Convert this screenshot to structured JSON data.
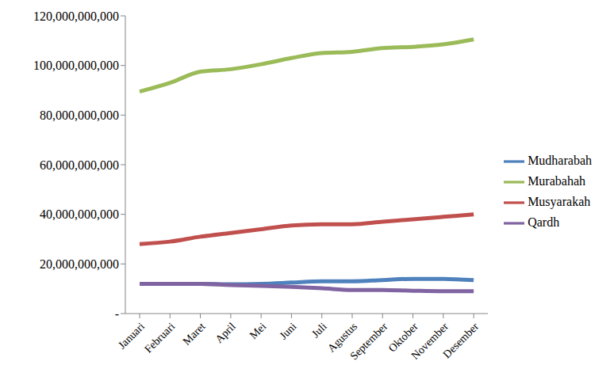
{
  "chart_data": {
    "type": "line",
    "categories": [
      "Januari",
      "Februari",
      "Maret",
      "April",
      "Mei",
      "Juni",
      "Juli",
      "Agustus",
      "September",
      "Oktober",
      "November",
      "Desember"
    ],
    "series": [
      {
        "name": "Mudharabah",
        "color": "#4f81bd",
        "values": [
          12000000000,
          12000000000,
          12000000000,
          11800000000,
          12000000000,
          12500000000,
          13000000000,
          13000000000,
          13500000000,
          14000000000,
          14000000000,
          13500000000
        ]
      },
      {
        "name": "Musyarakah",
        "color": "#c0504d",
        "values": [
          28000000000,
          29000000000,
          31000000000,
          32500000000,
          34000000000,
          35500000000,
          36000000000,
          36000000000,
          37000000000,
          38000000000,
          39000000000,
          40000000000
        ]
      },
      {
        "name": "Murabahah",
        "color": "#9bbb59",
        "values": [
          89500000000,
          93000000000,
          97500000000,
          98500000000,
          100500000000,
          103000000000,
          105000000000,
          105500000000,
          107000000000,
          107500000000,
          108500000000,
          110500000000
        ]
      },
      {
        "name": "Qardh",
        "color": "#8064a2",
        "values": [
          12000000000,
          12000000000,
          12000000000,
          11500000000,
          11200000000,
          10800000000,
          10200000000,
          9500000000,
          9500000000,
          9200000000,
          9000000000,
          9000000000
        ]
      }
    ],
    "ylim": [
      0,
      120000000000
    ],
    "yticks": [
      {
        "value": 0,
        "label": "-"
      },
      {
        "value": 20000000000,
        "label": "20,000,000,000"
      },
      {
        "value": 40000000000,
        "label": "40,000,000,000"
      },
      {
        "value": 60000000000,
        "label": "60,000,000,000"
      },
      {
        "value": 80000000000,
        "label": "80,000,000,000"
      },
      {
        "value": 100000000000,
        "label": "100,000,000,000"
      },
      {
        "value": 120000000000,
        "label": "120,000,000,000"
      }
    ],
    "grid": false,
    "legend": "right"
  }
}
